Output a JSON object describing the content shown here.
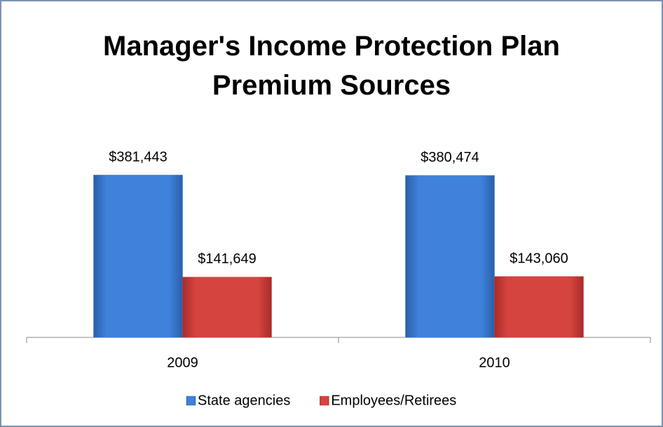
{
  "chart_data": {
    "type": "bar",
    "title": "Manager's Income Protection Plan Premium Sources",
    "categories": [
      "2009",
      "2010"
    ],
    "series": [
      {
        "name": "State agencies",
        "color": "#3a7bd5",
        "values": [
          381443,
          380474
        ],
        "value_labels": [
          "$381,443",
          "$380,474"
        ]
      },
      {
        "name": "Employees/Retirees",
        "color": "#d2403d",
        "values": [
          141649,
          143060
        ],
        "value_labels": [
          "$141,649",
          "$143,060"
        ]
      }
    ],
    "legend": "bottom"
  }
}
